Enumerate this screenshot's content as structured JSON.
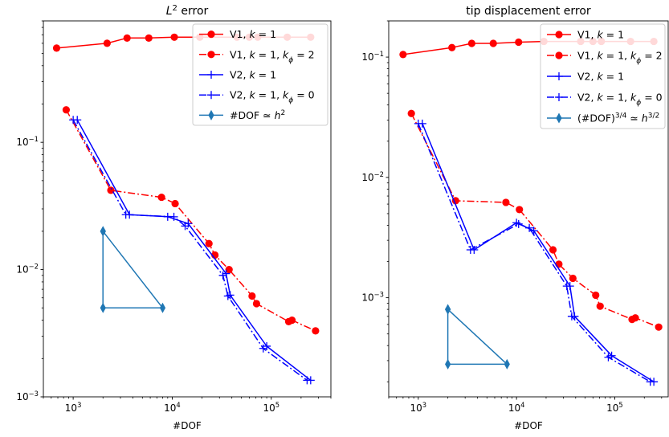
{
  "chart_data": [
    {
      "type": "line",
      "title_parts": [
        "L",
        "2",
        " error"
      ],
      "xlabel": "#DOF",
      "ylabel": "",
      "xscale": "log",
      "yscale": "log",
      "xlim": [
        500,
        400000
      ],
      "ylim": [
        0.001,
        0.9
      ],
      "xticks": [
        {
          "v": 1000,
          "b": "10",
          "e": "3"
        },
        {
          "v": 10000,
          "b": "10",
          "e": "4"
        },
        {
          "v": 100000,
          "b": "10",
          "e": "5"
        }
      ],
      "yticks": [
        {
          "v": 0.001,
          "b": "10",
          "e": "−3"
        },
        {
          "v": 0.01,
          "b": "10",
          "e": "−2"
        },
        {
          "v": 0.1,
          "b": "10",
          "e": "−1"
        }
      ],
      "grid": false,
      "legend_position": "top-right",
      "series": [
        {
          "name": "V1, k = 1",
          "legend_parts": [
            [
              "V1, ",
              "n"
            ],
            [
              "k",
              "i"
            ],
            [
              " = 1",
              "n"
            ]
          ],
          "color": "#ff0000",
          "style": "solid",
          "marker": "circle",
          "x": [
            680,
            2200,
            3500,
            5800,
            10500,
            19000,
            45000,
            60000,
            73000,
            145000,
            250000
          ],
          "y": [
            0.55,
            0.6,
            0.66,
            0.66,
            0.67,
            0.67,
            0.67,
            0.67,
            0.67,
            0.67,
            0.67
          ]
        },
        {
          "name": "V1, k = 1, kϕ = 2",
          "legend_parts": [
            [
              "V1, ",
              "n"
            ],
            [
              "k",
              "i"
            ],
            [
              " = 1, ",
              "n"
            ],
            [
              "k",
              "i"
            ],
            [
              "ϕ",
              "s"
            ],
            [
              " = 2",
              "n"
            ]
          ],
          "color": "#ff0000",
          "style": "dashdot",
          "marker": "circle",
          "x": [
            850,
            2400,
            7800,
            10700,
            23500,
            27000,
            37500,
            64000,
            71000,
            150000,
            162000,
            280000
          ],
          "y": [
            0.18,
            0.042,
            0.037,
            0.033,
            0.016,
            0.013,
            0.01,
            0.0062,
            0.0054,
            0.0039,
            0.004,
            0.0033
          ]
        },
        {
          "name": "V2, k = 1",
          "legend_parts": [
            [
              "V2, ",
              "n"
            ],
            [
              "k",
              "i"
            ],
            [
              " = 1",
              "n"
            ]
          ],
          "color": "#0000ff",
          "style": "solid",
          "marker": "plus",
          "x": [
            1100,
            3700,
            9000,
            14500,
            35000,
            38500,
            90000,
            250000
          ],
          "y": [
            0.15,
            0.027,
            0.026,
            0.023,
            0.0093,
            0.0063,
            0.0025,
            0.00135
          ]
        },
        {
          "name": "V2, k = 1, kϕ = 0",
          "legend_parts": [
            [
              "V2, ",
              "n"
            ],
            [
              "k",
              "i"
            ],
            [
              " = 1, ",
              "n"
            ],
            [
              "k",
              "i"
            ],
            [
              "ϕ",
              "s"
            ],
            [
              " = 0",
              "n"
            ]
          ],
          "color": "#0000ff",
          "style": "dashdot",
          "marker": "plus",
          "x": [
            1000,
            3400,
            10400,
            13500,
            32500,
            36500,
            83000,
            230000
          ],
          "y": [
            0.15,
            0.027,
            0.026,
            0.022,
            0.009,
            0.0062,
            0.0024,
            0.00135
          ]
        },
        {
          "name": "#DOF ≃ h2",
          "legend_parts": [
            [
              "#DOF ≃ ",
              "n"
            ],
            [
              "h",
              "i"
            ],
            [
              "2",
              "p"
            ]
          ],
          "color": "#1f77b4",
          "style": "solid",
          "marker": "diamond",
          "x": [
            2000,
            2000,
            8000,
            2000
          ],
          "y": [
            0.02,
            0.005,
            0.005,
            0.02
          ]
        }
      ]
    },
    {
      "type": "line",
      "title_parts": [
        "tip displacement error"
      ],
      "xlabel": "#DOF",
      "ylabel": "",
      "xscale": "log",
      "yscale": "log",
      "xlim": [
        500,
        350000
      ],
      "ylim": [
        0.00015,
        0.2
      ],
      "xticks": [
        {
          "v": 1000,
          "b": "10",
          "e": "3"
        },
        {
          "v": 10000,
          "b": "10",
          "e": "4"
        },
        {
          "v": 100000,
          "b": "10",
          "e": "5"
        }
      ],
      "yticks": [
        {
          "v": 0.001,
          "b": "10",
          "e": "−3"
        },
        {
          "v": 0.01,
          "b": "10",
          "e": "−2"
        },
        {
          "v": 0.1,
          "b": "10",
          "e": "−1"
        }
      ],
      "grid": false,
      "legend_position": "top-right",
      "series": [
        {
          "name": "V1, k = 1",
          "legend_parts": [
            [
              "V1, ",
              "n"
            ],
            [
              "k",
              "i"
            ],
            [
              " = 1",
              "n"
            ]
          ],
          "color": "#ff0000",
          "style": "solid",
          "marker": "circle",
          "x": [
            700,
            2200,
            3500,
            5800,
            10500,
            19000,
            45000,
            60000,
            73000,
            145000,
            250000
          ],
          "y": [
            0.105,
            0.12,
            0.13,
            0.13,
            0.133,
            0.135,
            0.135,
            0.135,
            0.135,
            0.135,
            0.135
          ]
        },
        {
          "name": "V1, k = 1, kϕ = 2",
          "legend_parts": [
            [
              "V1, ",
              "n"
            ],
            [
              "k",
              "i"
            ],
            [
              " = 1, ",
              "n"
            ],
            [
              "k",
              "i"
            ],
            [
              "ϕ",
              "s"
            ],
            [
              " = 2",
              "n"
            ]
          ],
          "color": "#ff0000",
          "style": "dashdot",
          "marker": "circle",
          "x": [
            850,
            2400,
            7800,
            10700,
            23500,
            27000,
            37500,
            64000,
            71000,
            150000,
            162000,
            280000
          ],
          "y": [
            0.034,
            0.0064,
            0.0062,
            0.0054,
            0.0025,
            0.0019,
            0.00145,
            0.00105,
            0.00085,
            0.00066,
            0.00068,
            0.00057
          ]
        },
        {
          "name": "V2, k = 1",
          "legend_parts": [
            [
              "V2, ",
              "n"
            ],
            [
              "k",
              "i"
            ],
            [
              " = 1",
              "n"
            ]
          ],
          "color": "#0000ff",
          "style": "solid",
          "marker": "plus",
          "x": [
            1100,
            3700,
            10000,
            15000,
            35000,
            39000,
            93000,
            250000
          ],
          "y": [
            0.028,
            0.0025,
            0.0042,
            0.0036,
            0.00125,
            0.0007,
            0.00033,
            0.0002
          ]
        },
        {
          "name": "V2, k = 1, kϕ = 0",
          "legend_parts": [
            [
              "V2, ",
              "n"
            ],
            [
              "k",
              "i"
            ],
            [
              " = 1, ",
              "n"
            ],
            [
              "k",
              "i"
            ],
            [
              "ϕ",
              "s"
            ],
            [
              " = 0",
              "n"
            ]
          ],
          "color": "#0000ff",
          "style": "dashdot",
          "marker": "plus",
          "x": [
            1000,
            3400,
            10500,
            13500,
            32500,
            36500,
            86000,
            230000
          ],
          "y": [
            0.028,
            0.0025,
            0.0041,
            0.0038,
            0.00125,
            0.0007,
            0.00032,
            0.0002
          ]
        },
        {
          "name": "(#DOF)3/4 ≃ h3/2",
          "legend_parts": [
            [
              "(#DOF)",
              "n"
            ],
            [
              "3/4",
              "p"
            ],
            [
              " ≃ ",
              "n"
            ],
            [
              "h",
              "i"
            ],
            [
              "3/2",
              "p"
            ]
          ],
          "color": "#1f77b4",
          "style": "solid",
          "marker": "diamond",
          "x": [
            2000,
            2000,
            8000,
            2000
          ],
          "y": [
            0.0008,
            0.00028,
            0.00028,
            0.0008
          ]
        }
      ]
    }
  ]
}
